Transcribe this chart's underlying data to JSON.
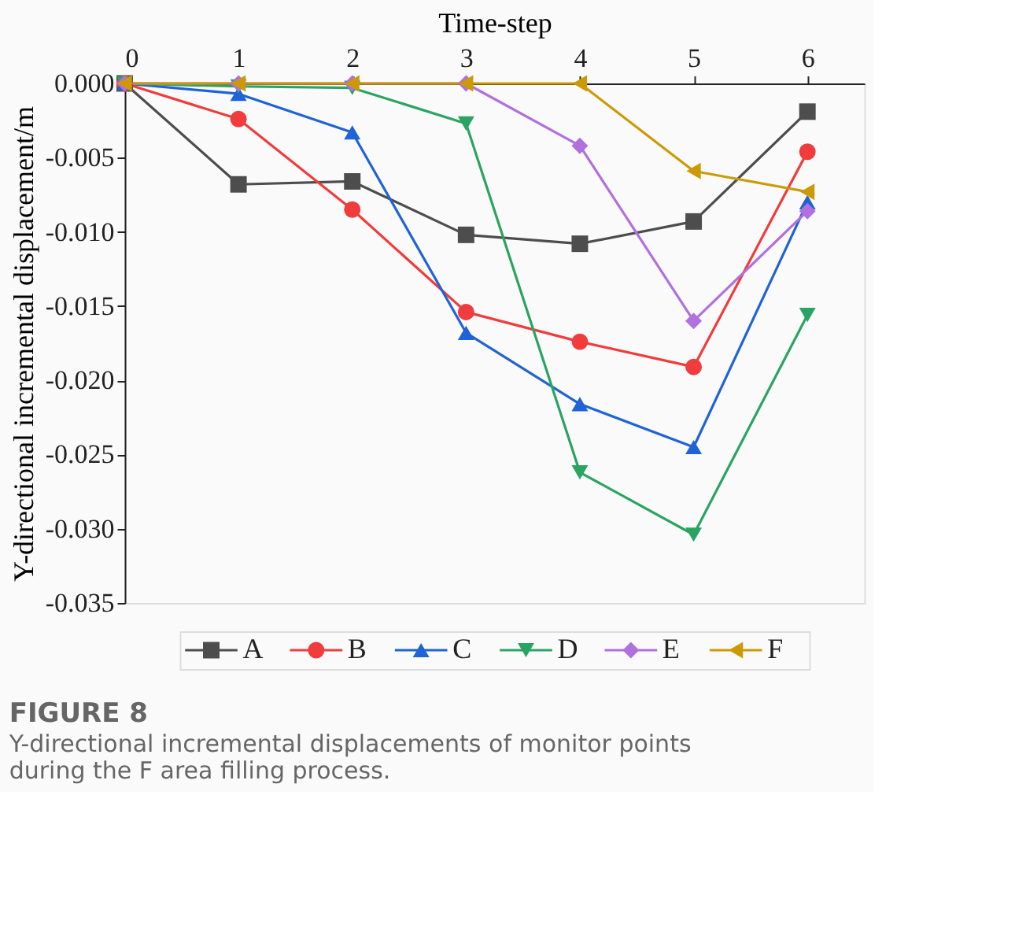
{
  "chart_data": {
    "type": "line",
    "title": "FIGURE 8",
    "subtitle": "Y-directional incremental displacements of monitor points during the F area filling process.",
    "xlabel": "Time-step",
    "ylabel": "Y-directional incremental displacement/m",
    "x": [
      0,
      1,
      2,
      3,
      4,
      5,
      6
    ],
    "series": [
      {
        "name": "A",
        "color": "#4d4d4d",
        "marker": "square",
        "values": [
          0,
          -0.0068,
          -0.0066,
          -0.0102,
          -0.0108,
          -0.0093,
          -0.0019
        ]
      },
      {
        "name": "B",
        "color": "#f03c3c",
        "marker": "circle",
        "values": [
          0,
          -0.0024,
          -0.0085,
          -0.0154,
          -0.0174,
          -0.0191,
          -0.0046
        ]
      },
      {
        "name": "C",
        "color": "#1f63d6",
        "marker": "triangle",
        "values": [
          0,
          -0.0007,
          -0.0033,
          -0.0168,
          -0.0216,
          -0.0245,
          -0.008
        ]
      },
      {
        "name": "D",
        "color": "#2aa462",
        "marker": "triangle-down",
        "values": [
          0,
          -0.0002,
          -0.0003,
          -0.0027,
          -0.0262,
          -0.0304,
          -0.0156
        ]
      },
      {
        "name": "E",
        "color": "#b070dd",
        "marker": "diamond",
        "values": [
          0,
          0,
          0,
          0,
          -0.0042,
          -0.016,
          -0.0086
        ]
      },
      {
        "name": "F",
        "color": "#cc9a06",
        "marker": "triangle-left",
        "values": [
          0,
          0,
          0,
          0,
          0,
          -0.0059,
          -0.0073
        ]
      }
    ],
    "xlim": [
      0,
      6.5
    ],
    "xticks": [
      0,
      1,
      2,
      3,
      4,
      5,
      6
    ],
    "ylim": [
      -0.035,
      0
    ],
    "yticks": [
      {
        "value": 0,
        "label": "0.000"
      },
      {
        "value": -0.005,
        "label": "-0.005"
      },
      {
        "value": -0.01,
        "label": "-0.010"
      },
      {
        "value": -0.015,
        "label": "-0.015"
      },
      {
        "value": -0.02,
        "label": "-0.020"
      },
      {
        "value": -0.025,
        "label": "-0.025"
      },
      {
        "value": -0.03,
        "label": "-0.030"
      },
      {
        "value": -0.035,
        "label": "-0.035"
      }
    ],
    "grid": false,
    "legend": "bottom",
    "line_style": "solid"
  }
}
